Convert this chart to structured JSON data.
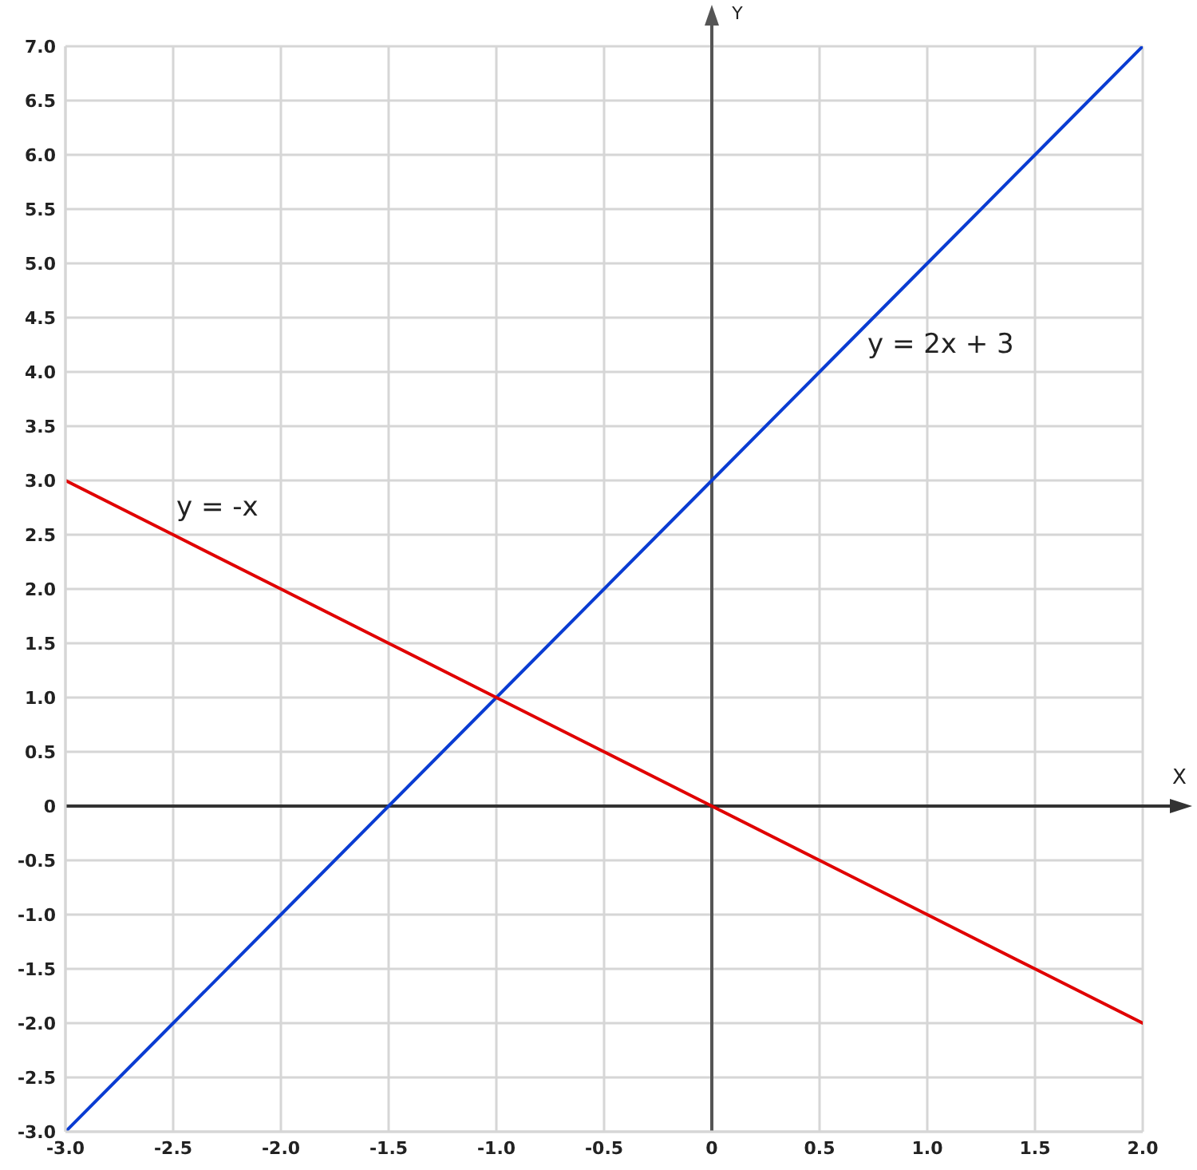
{
  "chart_data": {
    "type": "line",
    "xlabel": "X",
    "ylabel": "Y",
    "x": [
      -3,
      -2.5,
      -2,
      -1.5,
      -1,
      -0.5,
      0,
      0.5,
      1,
      1.5,
      2
    ],
    "series": [
      {
        "name": "y = 2x + 3",
        "color": "#0a3cd2",
        "values": [
          -3,
          -2,
          -1,
          0,
          1,
          2,
          3,
          4,
          5,
          6,
          7
        ]
      },
      {
        "name": "y = -x",
        "color": "#e00000",
        "values": [
          3,
          2.5,
          2,
          1.5,
          1,
          0.5,
          0,
          -0.5,
          -1,
          -1.5,
          -2
        ]
      }
    ],
    "xlim": [
      -3,
      2
    ],
    "xticks": [
      {
        "value": -3,
        "label": "-3.0"
      },
      -2.5,
      {
        "value": -2,
        "label": "-2.0"
      },
      -1.5,
      {
        "value": -1,
        "label": "-1.0"
      },
      -0.5,
      0,
      0.5,
      {
        "value": 1,
        "label": "1.0"
      },
      1.5,
      {
        "value": 2,
        "label": "2.0"
      }
    ],
    "ylim": [
      -3,
      7
    ],
    "yticks": [
      {
        "value": -3,
        "label": "-3.0"
      },
      -2.5,
      {
        "value": -2,
        "label": "-2.0"
      },
      -1.5,
      {
        "value": -1,
        "label": "-1.0"
      },
      -0.5,
      0,
      0.5,
      {
        "value": 1,
        "label": "1.0"
      },
      1.5,
      {
        "value": 2,
        "label": "2.0"
      },
      2.5,
      {
        "value": 3,
        "label": "3.0"
      },
      3.5,
      {
        "value": 4,
        "label": "4.0"
      },
      4.5,
      {
        "value": 5,
        "label": "5.0"
      },
      5.5,
      {
        "value": 6,
        "label": "6.0"
      },
      6.5,
      {
        "value": 7,
        "label": "7.0"
      }
    ],
    "grid": true,
    "marker": "none",
    "line_style": "solid",
    "ref_lines": [
      {
        "axis": "x",
        "value": 0,
        "color": "#555555"
      },
      {
        "axis": "y",
        "value": 0,
        "color": "#333333"
      }
    ]
  }
}
